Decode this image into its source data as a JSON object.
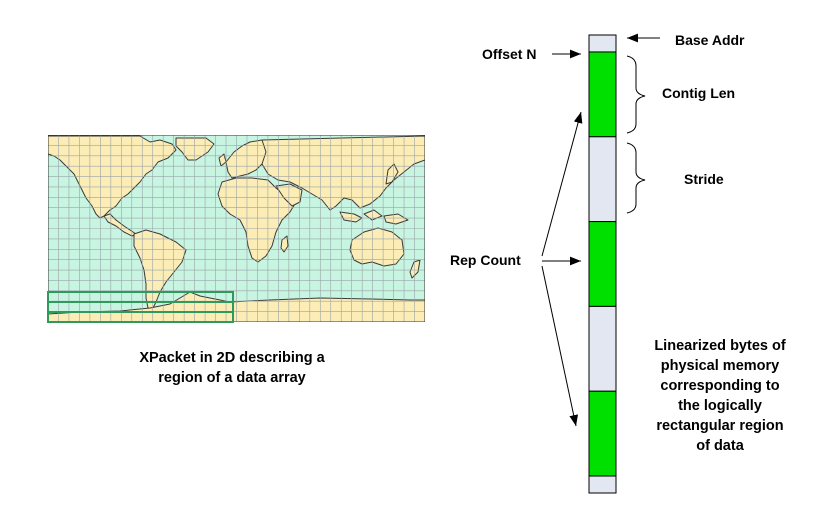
{
  "map_caption": [
    "XPacket in 2D describing a",
    "region of a data array"
  ],
  "labels": {
    "base_addr": "Base Addr",
    "offset_n": "Offset N",
    "contig_len": "Contig Len",
    "stride": "Stride",
    "rep_count": "Rep Count"
  },
  "memory_caption": [
    "Linearized bytes of",
    "physical memory",
    "corresponding to",
    "the logically",
    "rectangular region",
    "of data"
  ],
  "memory_blocks": [
    {
      "kind": "gap",
      "bytes": 1
    },
    {
      "kind": "data",
      "bytes": 5
    },
    {
      "kind": "gap",
      "bytes": 5
    },
    {
      "kind": "data",
      "bytes": 5
    },
    {
      "kind": "gap",
      "bytes": 5
    },
    {
      "kind": "data",
      "bytes": 5
    },
    {
      "kind": "gap",
      "bytes": 1
    }
  ],
  "colors": {
    "ocean": "#c8f5e2",
    "land": "#fcedb6",
    "grid": "#9aa3a8",
    "coast": "#3a3a3a",
    "selection": "#2e9a5c",
    "data_block": "#00e000",
    "gap_block": "#e3e7f2"
  }
}
